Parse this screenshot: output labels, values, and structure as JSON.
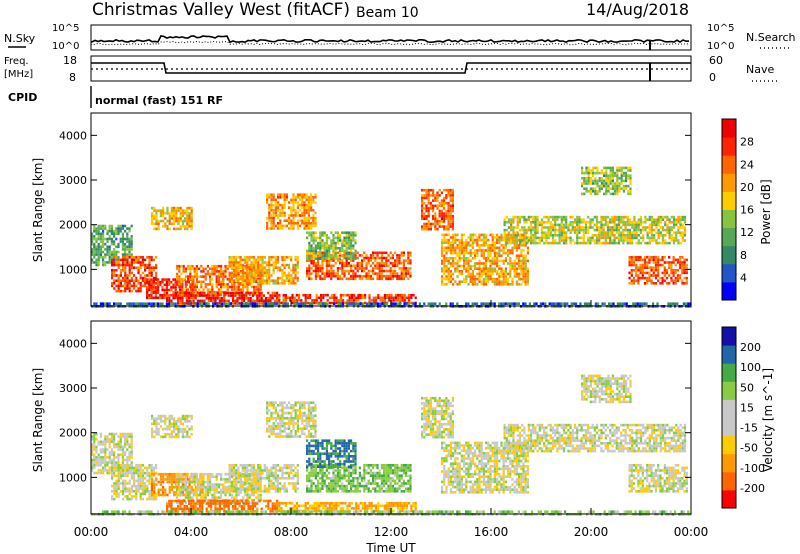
{
  "header": {
    "title": "Christmas Valley West (fitACF)",
    "beam": "Beam 10",
    "date": "14/Aug/2018"
  },
  "status": {
    "nsky_label": "N.Sky",
    "nsearch_label": "N.Search",
    "log_top": "10^5",
    "log_bottom": "10^0",
    "freq_label": "Freq.",
    "freq_unit": "[MHz]",
    "freq_top": "18",
    "freq_bottom": "8",
    "nave_label": "Nave",
    "nave_top": "60",
    "nave_bottom": "0",
    "cpid_label": "CPID",
    "cpid_text": "normal (fast) 151 RF"
  },
  "colors": {
    "power_scale": [
      "#0000ff",
      "#2255c8",
      "#338866",
      "#55a855",
      "#88c440",
      "#ffcc00",
      "#ff9900",
      "#ff6600",
      "#ff2200",
      "#ee0000"
    ],
    "velocity_scale": [
      "#ff0000",
      "#ff6600",
      "#ff9900",
      "#ffcc00",
      "#c8c8c8",
      "#c8c8c8",
      "#88cc44",
      "#44aa44",
      "#2266aa",
      "#1111aa"
    ]
  },
  "chart_data": [
    {
      "type": "heatmap",
      "panel": "power",
      "ylabel": "Slant Range [km]",
      "colorbar_label": "Power [dB]",
      "colorbar_ticks": [
        "4",
        "8",
        "12",
        "16",
        "20",
        "24",
        "28"
      ],
      "x_ticks": [
        "00:00",
        "04:00",
        "08:00",
        "12:00",
        "16:00",
        "20:00",
        "00:00"
      ],
      "y_ticks": [
        "1000",
        "2000",
        "3000",
        "4000"
      ],
      "ylim": [
        180,
        4500
      ],
      "xlim_hours": [
        0,
        24
      ],
      "regions": [
        {
          "t0": 0.0,
          "t1": 1.6,
          "r0": 1100,
          "r1": 2000,
          "level": 11
        },
        {
          "t0": 0.8,
          "t1": 2.6,
          "r0": 500,
          "r1": 1300,
          "level": 26
        },
        {
          "t0": 2.2,
          "t1": 4.2,
          "r0": 350,
          "r1": 800,
          "level": 28
        },
        {
          "t0": 3.4,
          "t1": 6.8,
          "r0": 450,
          "r1": 1100,
          "level": 23
        },
        {
          "t0": 5.5,
          "t1": 8.3,
          "r0": 700,
          "r1": 1300,
          "level": 20
        },
        {
          "t0": 3.0,
          "t1": 7.4,
          "r0": 220,
          "r1": 500,
          "level": 29
        },
        {
          "t0": 7.4,
          "t1": 13.0,
          "r0": 230,
          "r1": 450,
          "level": 27
        },
        {
          "t0": 2.4,
          "t1": 4.0,
          "r0": 1900,
          "r1": 2400,
          "level": 19
        },
        {
          "t0": 7.0,
          "t1": 9.0,
          "r0": 1900,
          "r1": 2700,
          "level": 21
        },
        {
          "t0": 8.6,
          "t1": 12.8,
          "r0": 800,
          "r1": 1400,
          "level": 25
        },
        {
          "t0": 8.6,
          "t1": 10.6,
          "r0": 1250,
          "r1": 1850,
          "level": 13
        },
        {
          "t0": 13.2,
          "t1": 14.5,
          "r0": 1900,
          "r1": 2800,
          "level": 24
        },
        {
          "t0": 14.0,
          "t1": 17.5,
          "r0": 650,
          "r1": 1800,
          "level": 20
        },
        {
          "t0": 16.5,
          "t1": 23.8,
          "r0": 1600,
          "r1": 2200,
          "level": 16
        },
        {
          "t0": 21.5,
          "t1": 23.8,
          "r0": 700,
          "r1": 1300,
          "level": 25
        },
        {
          "t0": 19.6,
          "t1": 21.6,
          "r0": 2700,
          "r1": 3300,
          "level": 14
        },
        {
          "t0": 0.0,
          "t1": 24.0,
          "r0": 190,
          "r1": 260,
          "level": 6
        }
      ]
    },
    {
      "type": "heatmap",
      "panel": "velocity",
      "ylabel": "Slant Range [km]",
      "xlabel": "Time UT",
      "colorbar_label": "Velocity [m s^-1]",
      "colorbar_ticks": [
        "-200",
        "-100",
        "-50",
        "-15",
        "15",
        "50",
        "100",
        "200"
      ],
      "x_ticks": [
        "00:00",
        "04:00",
        "08:00",
        "12:00",
        "16:00",
        "20:00",
        "00:00"
      ],
      "y_ticks": [
        "1000",
        "2000",
        "3000",
        "4000"
      ],
      "ylim": [
        180,
        4500
      ],
      "xlim_hours": [
        0,
        24
      ],
      "regions": [
        {
          "t0": 0.0,
          "t1": 1.6,
          "r0": 1100,
          "r1": 2000,
          "level": 0
        },
        {
          "t0": 0.8,
          "t1": 2.6,
          "r0": 500,
          "r1": 1300,
          "level": 0
        },
        {
          "t0": 2.4,
          "t1": 4.5,
          "r0": 600,
          "r1": 1100,
          "level": -80
        },
        {
          "t0": 3.4,
          "t1": 6.8,
          "r0": 450,
          "r1": 1100,
          "level": 0
        },
        {
          "t0": 5.5,
          "t1": 8.3,
          "r0": 700,
          "r1": 1300,
          "level": 0
        },
        {
          "t0": 3.0,
          "t1": 7.4,
          "r0": 220,
          "r1": 500,
          "level": -120
        },
        {
          "t0": 7.4,
          "t1": 13.0,
          "r0": 230,
          "r1": 450,
          "level": -60
        },
        {
          "t0": 2.4,
          "t1": 4.0,
          "r0": 1900,
          "r1": 2400,
          "level": 0
        },
        {
          "t0": 7.0,
          "t1": 9.0,
          "r0": 1900,
          "r1": 2700,
          "level": 0
        },
        {
          "t0": 8.6,
          "t1": 12.8,
          "r0": 700,
          "r1": 1300,
          "level": 40
        },
        {
          "t0": 8.6,
          "t1": 10.6,
          "r0": 1250,
          "r1": 1850,
          "level": 110
        },
        {
          "t0": 13.2,
          "t1": 14.5,
          "r0": 1900,
          "r1": 2800,
          "level": 0
        },
        {
          "t0": 14.0,
          "t1": 17.5,
          "r0": 650,
          "r1": 1800,
          "level": 0
        },
        {
          "t0": 16.5,
          "t1": 23.8,
          "r0": 1600,
          "r1": 2200,
          "level": 0
        },
        {
          "t0": 21.5,
          "t1": 23.8,
          "r0": 700,
          "r1": 1300,
          "level": 0
        },
        {
          "t0": 19.6,
          "t1": 21.6,
          "r0": 2700,
          "r1": 3300,
          "level": 0
        },
        {
          "t0": 0.0,
          "t1": 24.0,
          "r0": 190,
          "r1": 260,
          "level": 30
        }
      ]
    }
  ]
}
